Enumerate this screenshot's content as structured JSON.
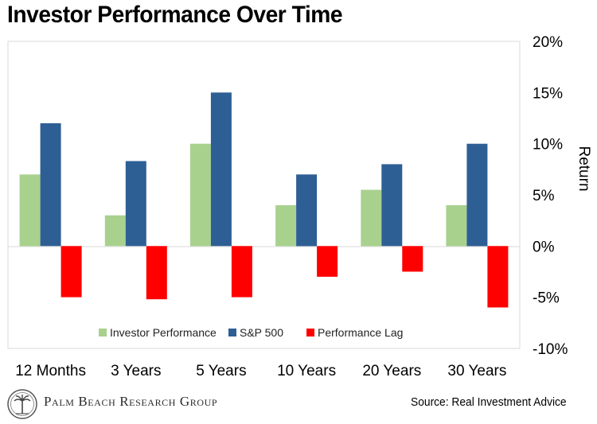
{
  "title": "Investor Performance Over Time",
  "source": "Source: Real Investment Advice",
  "brand": "Palm Beach Research Group",
  "colors": {
    "investor": "#a9d18e",
    "sp500": "#2e5f94",
    "lag": "#ff0000",
    "plot_border": "#d9d9d9"
  },
  "chart_data": {
    "type": "bar",
    "title": "Investor Performance Over Time",
    "categories": [
      "12 Months",
      "3 Years",
      "5 Years",
      "10 Years",
      "20 Years",
      "30 Years"
    ],
    "series": [
      {
        "name": "Investor Performance",
        "color": "#a9d18e",
        "values": [
          7,
          3,
          10,
          4,
          5.5,
          4
        ]
      },
      {
        "name": "S&P 500",
        "color": "#2e5f94",
        "values": [
          12,
          8.3,
          15,
          7,
          8,
          10
        ]
      },
      {
        "name": "Performance Lag",
        "color": "#ff0000",
        "values": [
          -5,
          -5.2,
          -5,
          -3,
          -2.5,
          -6
        ]
      }
    ],
    "ylabel": "Return",
    "ylim": [
      -10,
      20
    ],
    "yticks": [
      20,
      15,
      10,
      5,
      0,
      -5,
      -10
    ],
    "ytick_labels": [
      "20%",
      "15%",
      "10%",
      "5%",
      "0%",
      "-5%",
      "-10%"
    ],
    "y_axis_side": "right",
    "grid": false,
    "legend_position": "bottom-center inside plot"
  }
}
